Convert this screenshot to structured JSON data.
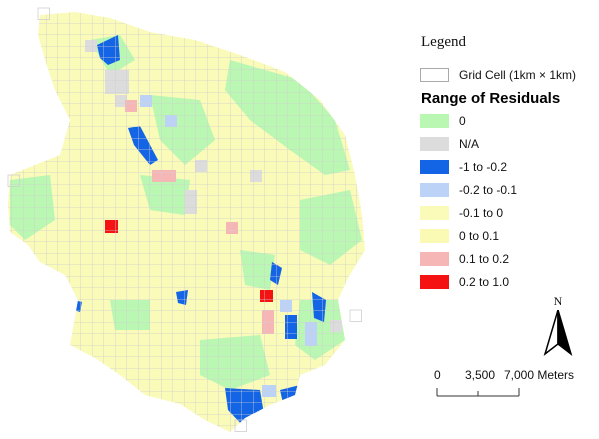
{
  "legend": {
    "title": "Legend",
    "grid_cell_label": "Grid Cell (1km × 1km)",
    "range_title": "Range of Residuals",
    "classes": [
      {
        "label": "0",
        "color": "#b9f7b2"
      },
      {
        "label": "N/A",
        "color": "#dcdcdc"
      },
      {
        "label": "-1 to -0.2",
        "color": "#1464e6"
      },
      {
        "label": "-0.2 to -0.1",
        "color": "#bcd3f7"
      },
      {
        "label": "-0.1 to 0",
        "color": "#fafab9"
      },
      {
        "label": "0 to 0.1",
        "color": "#fafab4"
      },
      {
        "label": "0.1 to 0.2",
        "color": "#f6b6b6"
      },
      {
        "label": "0.2 to 1.0",
        "color": "#f51212"
      }
    ]
  },
  "north_arrow": {
    "letter": "N"
  },
  "scale_bar": {
    "labels": [
      "0",
      "3,500",
      "7,000 Meters"
    ]
  }
}
